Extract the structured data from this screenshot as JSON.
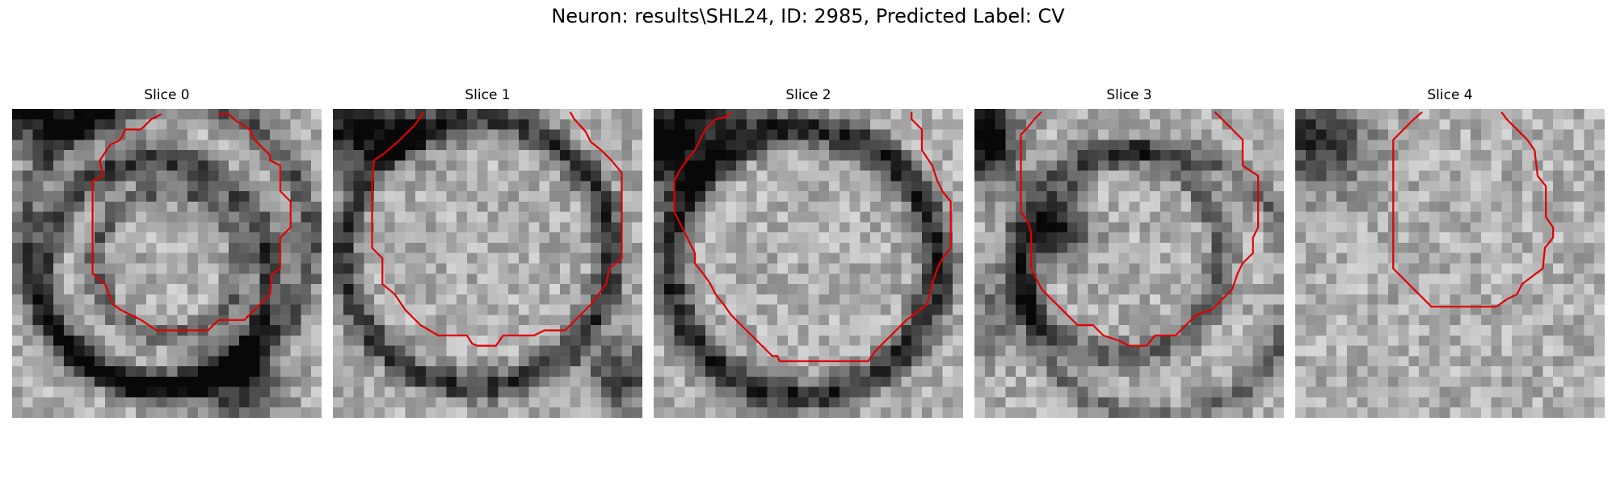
{
  "figure": {
    "title": "Neuron: results\\SHL24, ID: 2985, Predicted Label: CV"
  },
  "image_grid": {
    "rows": 30,
    "cols": 30
  },
  "panels": [
    {
      "title": "Slice 0",
      "seed": 11,
      "dark_blobs": [
        {
          "cx": 3,
          "cy": 1,
          "rx": 7,
          "ry": 2.5,
          "strength": 170
        },
        {
          "cx": 22,
          "cy": 27,
          "rx": 4,
          "ry": 4,
          "strength": 120
        }
      ],
      "rings": [
        {
          "cx": 15,
          "cy": 13,
          "r": 14,
          "width": 1.3,
          "strength": 90
        },
        {
          "cx": 14,
          "cy": 16,
          "r": 11,
          "width": 1.4,
          "strength": 120
        },
        {
          "cx": 15,
          "cy": 15,
          "r": 7,
          "width": 1.1,
          "strength": 80
        }
      ],
      "contour": [
        [
          14.5,
          0.5
        ],
        [
          13.5,
          1
        ],
        [
          12.5,
          2
        ],
        [
          11,
          2
        ],
        [
          10.5,
          3
        ],
        [
          9.5,
          3.5
        ],
        [
          8.5,
          5
        ],
        [
          8.8,
          6.5
        ],
        [
          7.8,
          7
        ],
        [
          7.8,
          10
        ],
        [
          7.8,
          16
        ],
        [
          9,
          17
        ],
        [
          9.8,
          19
        ],
        [
          10.5,
          19.5
        ],
        [
          11.5,
          20
        ],
        [
          12.5,
          20.5
        ],
        [
          14,
          21.5
        ],
        [
          19,
          21.5
        ],
        [
          20,
          20.5
        ],
        [
          22.5,
          20.5
        ],
        [
          23.5,
          19.5
        ],
        [
          25,
          18
        ],
        [
          25.2,
          16
        ],
        [
          26,
          15.5
        ],
        [
          26,
          12.5
        ],
        [
          27,
          11.5
        ],
        [
          27,
          9
        ],
        [
          26,
          8
        ],
        [
          26,
          5.5
        ],
        [
          25,
          5
        ],
        [
          25,
          4.5
        ],
        [
          23.5,
          3
        ],
        [
          23,
          2
        ],
        [
          21.5,
          1
        ],
        [
          21,
          0.5
        ],
        [
          20,
          0.5
        ]
      ]
    },
    {
      "title": "Slice 1",
      "seed": 23,
      "dark_blobs": [
        {
          "cx": 3,
          "cy": 2,
          "rx": 6,
          "ry": 3,
          "strength": 180
        },
        {
          "cx": 28,
          "cy": 26,
          "rx": 3,
          "ry": 3,
          "strength": 130
        }
      ],
      "rings": [
        {
          "cx": 14,
          "cy": 14,
          "r": 13,
          "width": 1.5,
          "strength": 120
        }
      ],
      "contour": [
        [
          8.8,
          0.3
        ],
        [
          8,
          1.5
        ],
        [
          6.5,
          3
        ],
        [
          5,
          4.3
        ],
        [
          4,
          5
        ],
        [
          3.8,
          7
        ],
        [
          3.8,
          13.5
        ],
        [
          4.8,
          14.5
        ],
        [
          4.8,
          17
        ],
        [
          6,
          18
        ],
        [
          7,
          19.5
        ],
        [
          8.5,
          21
        ],
        [
          10.2,
          22
        ],
        [
          13,
          22
        ],
        [
          13.5,
          22.8
        ],
        [
          14,
          23
        ],
        [
          15.8,
          23
        ],
        [
          16.5,
          22
        ],
        [
          19.5,
          22
        ],
        [
          20.5,
          21.5
        ],
        [
          22.5,
          21.5
        ],
        [
          23.5,
          20.5
        ],
        [
          25,
          19
        ],
        [
          26.5,
          17
        ],
        [
          26.8,
          15.5
        ],
        [
          28,
          14.5
        ],
        [
          28,
          6.2
        ],
        [
          27,
          5
        ],
        [
          26,
          4
        ],
        [
          25,
          3.2
        ],
        [
          24.5,
          2.2
        ],
        [
          23.4,
          1
        ],
        [
          23,
          0.3
        ]
      ]
    },
    {
      "title": "Slice 2",
      "seed": 37,
      "dark_blobs": [
        {
          "cx": 1,
          "cy": 4,
          "rx": 4,
          "ry": 4,
          "strength": 190
        },
        {
          "cx": 6,
          "cy": 1,
          "rx": 5,
          "ry": 2,
          "strength": 110
        }
      ],
      "rings": [
        {
          "cx": 14.5,
          "cy": 15,
          "r": 13,
          "width": 1.6,
          "strength": 140
        }
      ],
      "contour": [
        [
          7.5,
          0.3
        ],
        [
          7,
          0.8
        ],
        [
          6,
          1
        ],
        [
          5,
          2
        ],
        [
          4.5,
          3
        ],
        [
          4,
          4
        ],
        [
          3.2,
          5
        ],
        [
          2.5,
          6
        ],
        [
          2,
          7
        ],
        [
          2,
          10
        ],
        [
          2.5,
          11
        ],
        [
          3,
          12
        ],
        [
          3.5,
          13
        ],
        [
          4,
          14
        ],
        [
          4,
          15
        ],
        [
          4.8,
          16
        ],
        [
          5.5,
          17
        ],
        [
          6,
          18
        ],
        [
          6.8,
          19
        ],
        [
          7.5,
          20
        ],
        [
          8.5,
          21
        ],
        [
          9.5,
          22
        ],
        [
          10.5,
          23
        ],
        [
          11.5,
          24
        ],
        [
          12,
          24
        ],
        [
          12.2,
          24.5
        ],
        [
          20.8,
          24.5
        ],
        [
          21.5,
          23.5
        ],
        [
          22.5,
          22.5
        ],
        [
          23.5,
          21.5
        ],
        [
          24.5,
          20.5
        ],
        [
          26.5,
          19
        ],
        [
          27,
          17
        ],
        [
          27.5,
          15.5
        ],
        [
          28,
          14.5
        ],
        [
          28.8,
          13.5
        ],
        [
          28.8,
          9
        ],
        [
          28,
          8
        ],
        [
          27.5,
          7
        ],
        [
          27,
          5.5
        ],
        [
          26,
          4
        ],
        [
          26,
          2
        ],
        [
          25,
          1
        ],
        [
          25,
          0.3
        ]
      ]
    },
    {
      "title": "Slice 3",
      "seed": 53,
      "dark_blobs": [
        {
          "cx": 1,
          "cy": 3,
          "rx": 3,
          "ry": 4,
          "strength": 190
        },
        {
          "cx": 8,
          "cy": 12,
          "rx": 3,
          "ry": 2.5,
          "strength": 140
        },
        {
          "cx": 2,
          "cy": 20,
          "rx": 3,
          "ry": 4,
          "strength": 70
        }
      ],
      "rings": [
        {
          "cx": 14,
          "cy": 14,
          "r": 10,
          "width": 1.4,
          "strength": 80
        },
        {
          "cx": 18,
          "cy": 17,
          "r": 13,
          "width": 1.2,
          "strength": 70
        }
      ],
      "contour": [
        [
          6.5,
          0.3
        ],
        [
          5.8,
          1
        ],
        [
          5,
          2
        ],
        [
          4.5,
          2.5
        ],
        [
          4.5,
          5
        ],
        [
          4.5,
          10
        ],
        [
          5.2,
          11
        ],
        [
          5.5,
          12
        ],
        [
          5.5,
          15.5
        ],
        [
          6.5,
          17.5
        ],
        [
          7.5,
          18.5
        ],
        [
          8.5,
          19.5
        ],
        [
          10,
          21
        ],
        [
          11.5,
          21
        ],
        [
          12.5,
          22
        ],
        [
          14,
          22.5
        ],
        [
          15,
          23
        ],
        [
          16.7,
          23
        ],
        [
          17.5,
          22
        ],
        [
          19.5,
          22
        ],
        [
          20.5,
          21
        ],
        [
          21.5,
          20
        ],
        [
          23,
          19.5
        ],
        [
          24,
          18.5
        ],
        [
          25,
          17.5
        ],
        [
          25.5,
          16
        ],
        [
          26,
          15
        ],
        [
          27,
          14
        ],
        [
          27,
          12.5
        ],
        [
          27.5,
          11.5
        ],
        [
          27.5,
          6.5
        ],
        [
          26,
          5.5
        ],
        [
          26,
          3
        ],
        [
          25,
          2
        ],
        [
          24,
          1
        ],
        [
          23.3,
          0.3
        ]
      ]
    },
    {
      "title": "Slice 4",
      "seed": 71,
      "dark_blobs": [
        {
          "cx": 2,
          "cy": 3,
          "rx": 5,
          "ry": 5,
          "strength": 120
        }
      ],
      "rings": [],
      "contour": [
        [
          12.3,
          0.3
        ],
        [
          11.5,
          1
        ],
        [
          10.5,
          2
        ],
        [
          9.5,
          3
        ],
        [
          9.5,
          9
        ],
        [
          9.5,
          15.5
        ],
        [
          10.5,
          16.5
        ],
        [
          11.5,
          17.5
        ],
        [
          12.5,
          18.5
        ],
        [
          13.2,
          19.2
        ],
        [
          19.5,
          19.2
        ],
        [
          20.5,
          18.5
        ],
        [
          21.5,
          18
        ],
        [
          22,
          17
        ],
        [
          24,
          15.5
        ],
        [
          24.2,
          13.5
        ],
        [
          25,
          12.5
        ],
        [
          25,
          11.5
        ],
        [
          24.3,
          10.5
        ],
        [
          24.3,
          7.5
        ],
        [
          23.5,
          6.5
        ],
        [
          23.2,
          4
        ],
        [
          22.5,
          3
        ],
        [
          21.5,
          2
        ],
        [
          20.5,
          1
        ],
        [
          20,
          0.3
        ]
      ]
    }
  ],
  "style": {
    "contour_color": "#e00000"
  }
}
